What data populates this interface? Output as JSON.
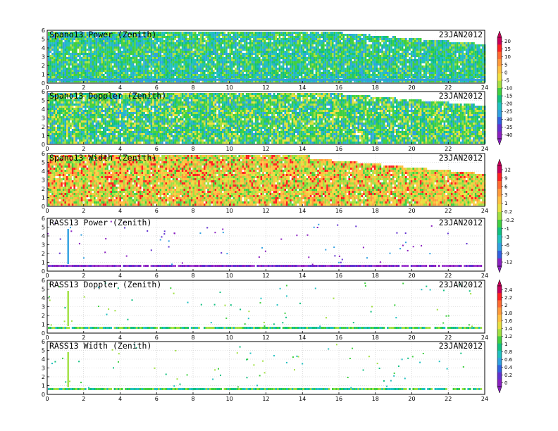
{
  "date_label": "23JAN2012",
  "chart_data": [
    {
      "type": "heatmap",
      "title": "Spano13 Power (Zenith)",
      "date": "23JAN2012",
      "xlim": [
        0,
        24
      ],
      "ylim": [
        0,
        6
      ],
      "x_ticks": [
        "0",
        "2",
        "4",
        "6",
        "8",
        "10",
        "12",
        "14",
        "16",
        "18",
        "20",
        "22",
        "24"
      ],
      "y_ticks": [
        "0",
        "1",
        "2",
        "3",
        "4",
        "5",
        "6"
      ],
      "colorbar_ticks": [
        "20",
        "15",
        "10",
        "5",
        "0",
        "-5",
        "-10",
        "-15",
        "-20",
        "-25",
        "-30",
        "-35",
        "-40"
      ],
      "field": "dense",
      "dominant_value": -15,
      "colorbar_group": "power"
    },
    {
      "type": "heatmap",
      "title": "Spano13 Doppler (Zenith)",
      "date": "23JAN2012",
      "xlim": [
        0,
        24
      ],
      "ylim": [
        0,
        6
      ],
      "x_ticks": [
        "0",
        "2",
        "4",
        "6",
        "8",
        "10",
        "12",
        "14",
        "16",
        "18",
        "20",
        "22",
        "24"
      ],
      "y_ticks": [
        "0",
        "1",
        "2",
        "3",
        "4",
        "5",
        "6"
      ],
      "field": "dense",
      "dominant_value": 0,
      "colorbar_group": "power"
    },
    {
      "type": "heatmap",
      "title": "Spano13 Width (Zenith)",
      "date": "23JAN2012",
      "xlim": [
        0,
        24
      ],
      "ylim": [
        0,
        6
      ],
      "x_ticks": [
        "0",
        "2",
        "4",
        "6",
        "8",
        "10",
        "12",
        "14",
        "16",
        "18",
        "20",
        "22",
        "24"
      ],
      "y_ticks": [
        "0",
        "1",
        "2",
        "3",
        "4",
        "5",
        "6"
      ],
      "colorbar_ticks": [
        "12",
        "9",
        "6",
        "3",
        "1",
        "0.2",
        "-0.2",
        "-1",
        "-3",
        "-6",
        "-9",
        "-12"
      ],
      "field": "dense",
      "dominant_value": 3,
      "colorbar_group": "doppler"
    },
    {
      "type": "heatmap",
      "title": "RASS13 Power (Zenith)",
      "date": "23JAN2012",
      "xlim": [
        0,
        24
      ],
      "ylim": [
        0,
        6
      ],
      "x_ticks": [
        "0",
        "2",
        "4",
        "6",
        "8",
        "10",
        "12",
        "14",
        "16",
        "18",
        "20",
        "22",
        "24"
      ],
      "y_ticks": [
        "0",
        "1",
        "2",
        "3",
        "4",
        "5",
        "6"
      ],
      "field": "sparse",
      "band_height_km": 0.6,
      "colorbar_group": "doppler"
    },
    {
      "type": "heatmap",
      "title": "RASS13 Doppler (Zenith)",
      "date": "23JAN2012",
      "xlim": [
        0,
        24
      ],
      "ylim": [
        0,
        6
      ],
      "x_ticks": [
        "0",
        "2",
        "4",
        "6",
        "8",
        "10",
        "12",
        "14",
        "16",
        "18",
        "20",
        "22",
        "24"
      ],
      "y_ticks": [
        "0",
        "1",
        "2",
        "3",
        "4",
        "5",
        "6"
      ],
      "colorbar_ticks": [
        "2.4",
        "2.2",
        "2",
        "1.8",
        "1.6",
        "1.4",
        "1.2",
        "1",
        "0.8",
        "0.6",
        "0.4",
        "0.2",
        "0"
      ],
      "field": "sparse",
      "band_height_km": 0.6,
      "colorbar_group": "width"
    },
    {
      "type": "heatmap",
      "title": "RASS13 Width (Zenith)",
      "date": "23JAN2012",
      "xlim": [
        0,
        24
      ],
      "ylim": [
        0,
        6
      ],
      "x_ticks": [
        "0",
        "2",
        "4",
        "6",
        "8",
        "10",
        "12",
        "14",
        "16",
        "18",
        "20",
        "22",
        "24"
      ],
      "y_ticks": [
        "0",
        "1",
        "2",
        "3",
        "4",
        "5",
        "6"
      ],
      "field": "sparse",
      "band_height_km": 0.6,
      "colorbar_group": "width"
    }
  ],
  "colorbars": [
    {
      "name": "power",
      "ticks": [
        "20",
        "15",
        "10",
        "5",
        "0",
        "-5",
        "-10",
        "-15",
        "-20",
        "-25",
        "-30",
        "-35",
        "-40"
      ],
      "colors": [
        "#c8005a",
        "#ff2020",
        "#ff6a30",
        "#ff9a3a",
        "#ffc040",
        "#f0e040",
        "#a8e040",
        "#40d040",
        "#10c080",
        "#20c0c0",
        "#30a0e0",
        "#3060e0",
        "#6030d0",
        "#8a20c0"
      ]
    },
    {
      "name": "doppler",
      "ticks": [
        "12",
        "9",
        "6",
        "3",
        "1",
        "0.2",
        "-0.2",
        "-1",
        "-3",
        "-6",
        "-9",
        "-12"
      ],
      "colors": [
        "#c8005a",
        "#ff2020",
        "#ff6a30",
        "#ff9a3a",
        "#ffc040",
        "#e8e040",
        "#a0e040",
        "#40d040",
        "#10c080",
        "#20c0c0",
        "#30a0e0",
        "#3060e0",
        "#8a20c0"
      ]
    },
    {
      "name": "width",
      "ticks": [
        "2.4",
        "2.2",
        "2",
        "1.8",
        "1.6",
        "1.4",
        "1.2",
        "1",
        "0.8",
        "0.6",
        "0.4",
        "0.2",
        "0"
      ],
      "colors": [
        "#c8005a",
        "#ff2020",
        "#ff6a30",
        "#ff9a3a",
        "#ffc040",
        "#e8e040",
        "#a0e040",
        "#40d040",
        "#10c080",
        "#20c0c0",
        "#30a0e0",
        "#3060e0",
        "#6030d0",
        "#8a20c0"
      ]
    }
  ]
}
